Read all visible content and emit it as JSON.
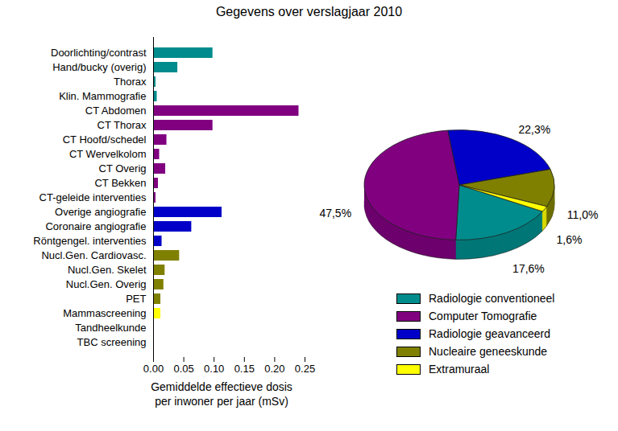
{
  "chart_data": [
    {
      "type": "bar",
      "title": "Gegevens over verslagjaar 2010",
      "orientation": "horizontal",
      "categories": [
        "Doorlichting/contrast",
        "Hand/bucky (overig)",
        "Thorax",
        "Klin. Mammografie",
        "CT Abdomen",
        "CT Thorax",
        "CT Hoofd/schedel",
        "CT Wervelkolom",
        "CT Overig",
        "CT Bekken",
        "CT-geleide interventies",
        "Overige angiografie",
        "Coronaire angiografie",
        "Röntgengel. interventies",
        "Nucl.Gen. Cardiovasc.",
        "Nucl.Gen. Skelet",
        "Nucl.Gen. Overig",
        "PET",
        "Mammascreening",
        "Tandheelkunde",
        "TBC screening"
      ],
      "values": [
        0.098,
        0.04,
        0.004,
        0.006,
        0.24,
        0.098,
        0.022,
        0.01,
        0.02,
        0.008,
        0.004,
        0.113,
        0.063,
        0.014,
        0.043,
        0.019,
        0.017,
        0.012,
        0.012,
        0.001,
        0.0005
      ],
      "colors": [
        "#008c8c",
        "#008c8c",
        "#008c8c",
        "#008c8c",
        "#800080",
        "#800080",
        "#800080",
        "#800080",
        "#800080",
        "#800080",
        "#800080",
        "#0000c8",
        "#0000c8",
        "#0000c8",
        "#808000",
        "#808000",
        "#808000",
        "#808000",
        "#ffff00",
        "#ffff00",
        "#ffff00"
      ],
      "xlabel": "Gemiddelde effectieve dosis\nper inwoner per jaar (mSv)",
      "xlim": [
        0,
        0.25
      ],
      "xticks": [
        {
          "value": 0,
          "label": "0.00"
        },
        {
          "value": 0.05,
          "label": "0.05"
        },
        {
          "value": 0.1,
          "label": "0.10"
        },
        {
          "value": 0.15,
          "label": "0.15"
        },
        {
          "value": 0.2,
          "label": "0.20"
        },
        {
          "value": 0.25,
          "label": "0.25"
        }
      ],
      "grid": false
    },
    {
      "type": "pie",
      "categories": [
        "Radiologie conventioneel",
        "Computer Tomografie",
        "Radiologie geavanceerd",
        "Nucleaire geneeskunde",
        "Extramuraal"
      ],
      "values": [
        17.6,
        47.5,
        22.3,
        11.0,
        1.6
      ],
      "value_labels": [
        "17,6%",
        "47,5%",
        "22,3%",
        "11,0%",
        "1,6%"
      ],
      "colors": [
        "#008c8c",
        "#800080",
        "#0000c8",
        "#808000",
        "#ffff00"
      ],
      "data_labels": true,
      "legend": "bottom"
    }
  ]
}
